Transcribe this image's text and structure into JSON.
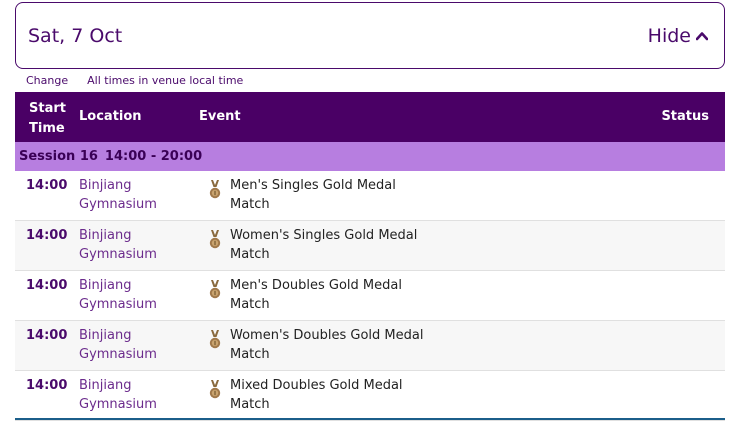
{
  "header": {
    "date": "Sat, 7 Oct",
    "hide_label": "Hide"
  },
  "subbar": {
    "change_label": "Change",
    "note": "All times in venue local time"
  },
  "table": {
    "columns": {
      "start_time": "Start Time",
      "location": "Location",
      "event": "Event",
      "status": "Status"
    },
    "session": {
      "label": "Session 16",
      "time_range": "14:00 - 20:00"
    },
    "rows": [
      {
        "time": "14:00",
        "location": "Binjiang Gymnasium",
        "event": "Men's Singles Gold Medal Match",
        "icon": "bronze-medal-icon"
      },
      {
        "time": "14:00",
        "location": "Binjiang Gymnasium",
        "event": "Women's Singles Gold Medal Match",
        "icon": "bronze-medal-icon"
      },
      {
        "time": "14:00",
        "location": "Binjiang Gymnasium",
        "event": "Men's Doubles Gold Medal Match",
        "icon": "bronze-medal-icon"
      },
      {
        "time": "14:00",
        "location": "Binjiang Gymnasium",
        "event": "Women's Doubles Gold Medal Match",
        "icon": "bronze-medal-icon"
      },
      {
        "time": "14:00",
        "location": "Binjiang Gymnasium",
        "event": "Mixed Doubles Gold Medal Match",
        "icon": "bronze-medal-icon"
      }
    ]
  },
  "colors": {
    "header_bg": "#4a0065",
    "session_bg": "#b77ee0",
    "accent": "#4a0a6b",
    "medal": "#a0784a"
  }
}
